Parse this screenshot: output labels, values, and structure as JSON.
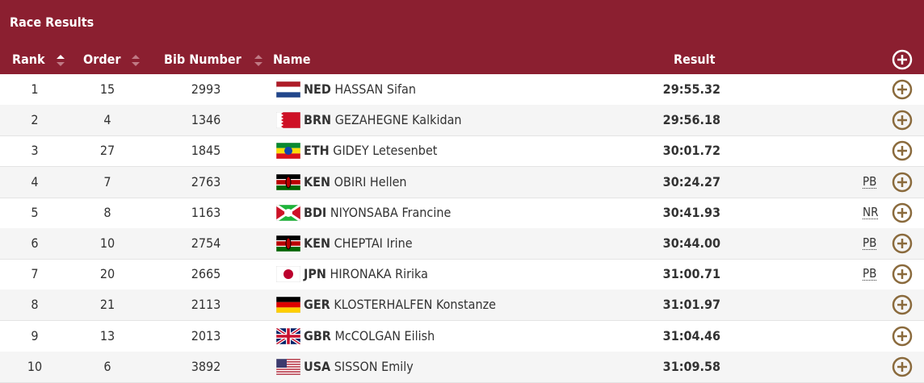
{
  "header": {
    "title": "Race Results",
    "columns": [
      "Rank",
      "Order",
      "Bib Number",
      "Name",
      "Result"
    ]
  },
  "table": {
    "rows": [
      {
        "rank": 1,
        "order": 15,
        "bib": 2993,
        "noc": "NED",
        "name": "HASSAN Sifan",
        "result": "29:55.32"
      },
      {
        "rank": 2,
        "order": 4,
        "bib": 1346,
        "noc": "BRN",
        "name": "GEZAHEGNE Kalkidan",
        "result": "29:56.18"
      },
      {
        "rank": 3,
        "order": 27,
        "bib": 1845,
        "noc": "ETH",
        "name": "GIDEY Letesenbet",
        "result": "30:01.72"
      },
      {
        "rank": 4,
        "order": 7,
        "bib": 2763,
        "noc": "KEN",
        "name": "OBIRI Hellen",
        "result": "30:24.27",
        "note": "PB"
      },
      {
        "rank": 5,
        "order": 8,
        "bib": 1163,
        "noc": "BDI",
        "name": "NIYONSABA Francine",
        "result": "30:41.93",
        "note": "NR"
      },
      {
        "rank": 6,
        "order": 10,
        "bib": 2754,
        "noc": "KEN",
        "name": "CHEPTAI Irine",
        "result": "30:44.00",
        "note": "PB"
      },
      {
        "rank": 7,
        "order": 20,
        "bib": 2665,
        "noc": "JPN",
        "name": "HIRONAKA Ririka",
        "result": "31:00.71",
        "note": "PB"
      },
      {
        "rank": 8,
        "order": 21,
        "bib": 2113,
        "noc": "GER",
        "name": "KLOSTERHALFEN Konstanze",
        "result": "31:01.97"
      },
      {
        "rank": 9,
        "order": 13,
        "bib": 2013,
        "noc": "GBR",
        "name": "McCOLGAN Eilish",
        "result": "31:04.46"
      },
      {
        "rank": 10,
        "order": 6,
        "bib": 3892,
        "noc": "USA",
        "name": "SISSON Emily",
        "result": "31:09.58"
      }
    ]
  }
}
